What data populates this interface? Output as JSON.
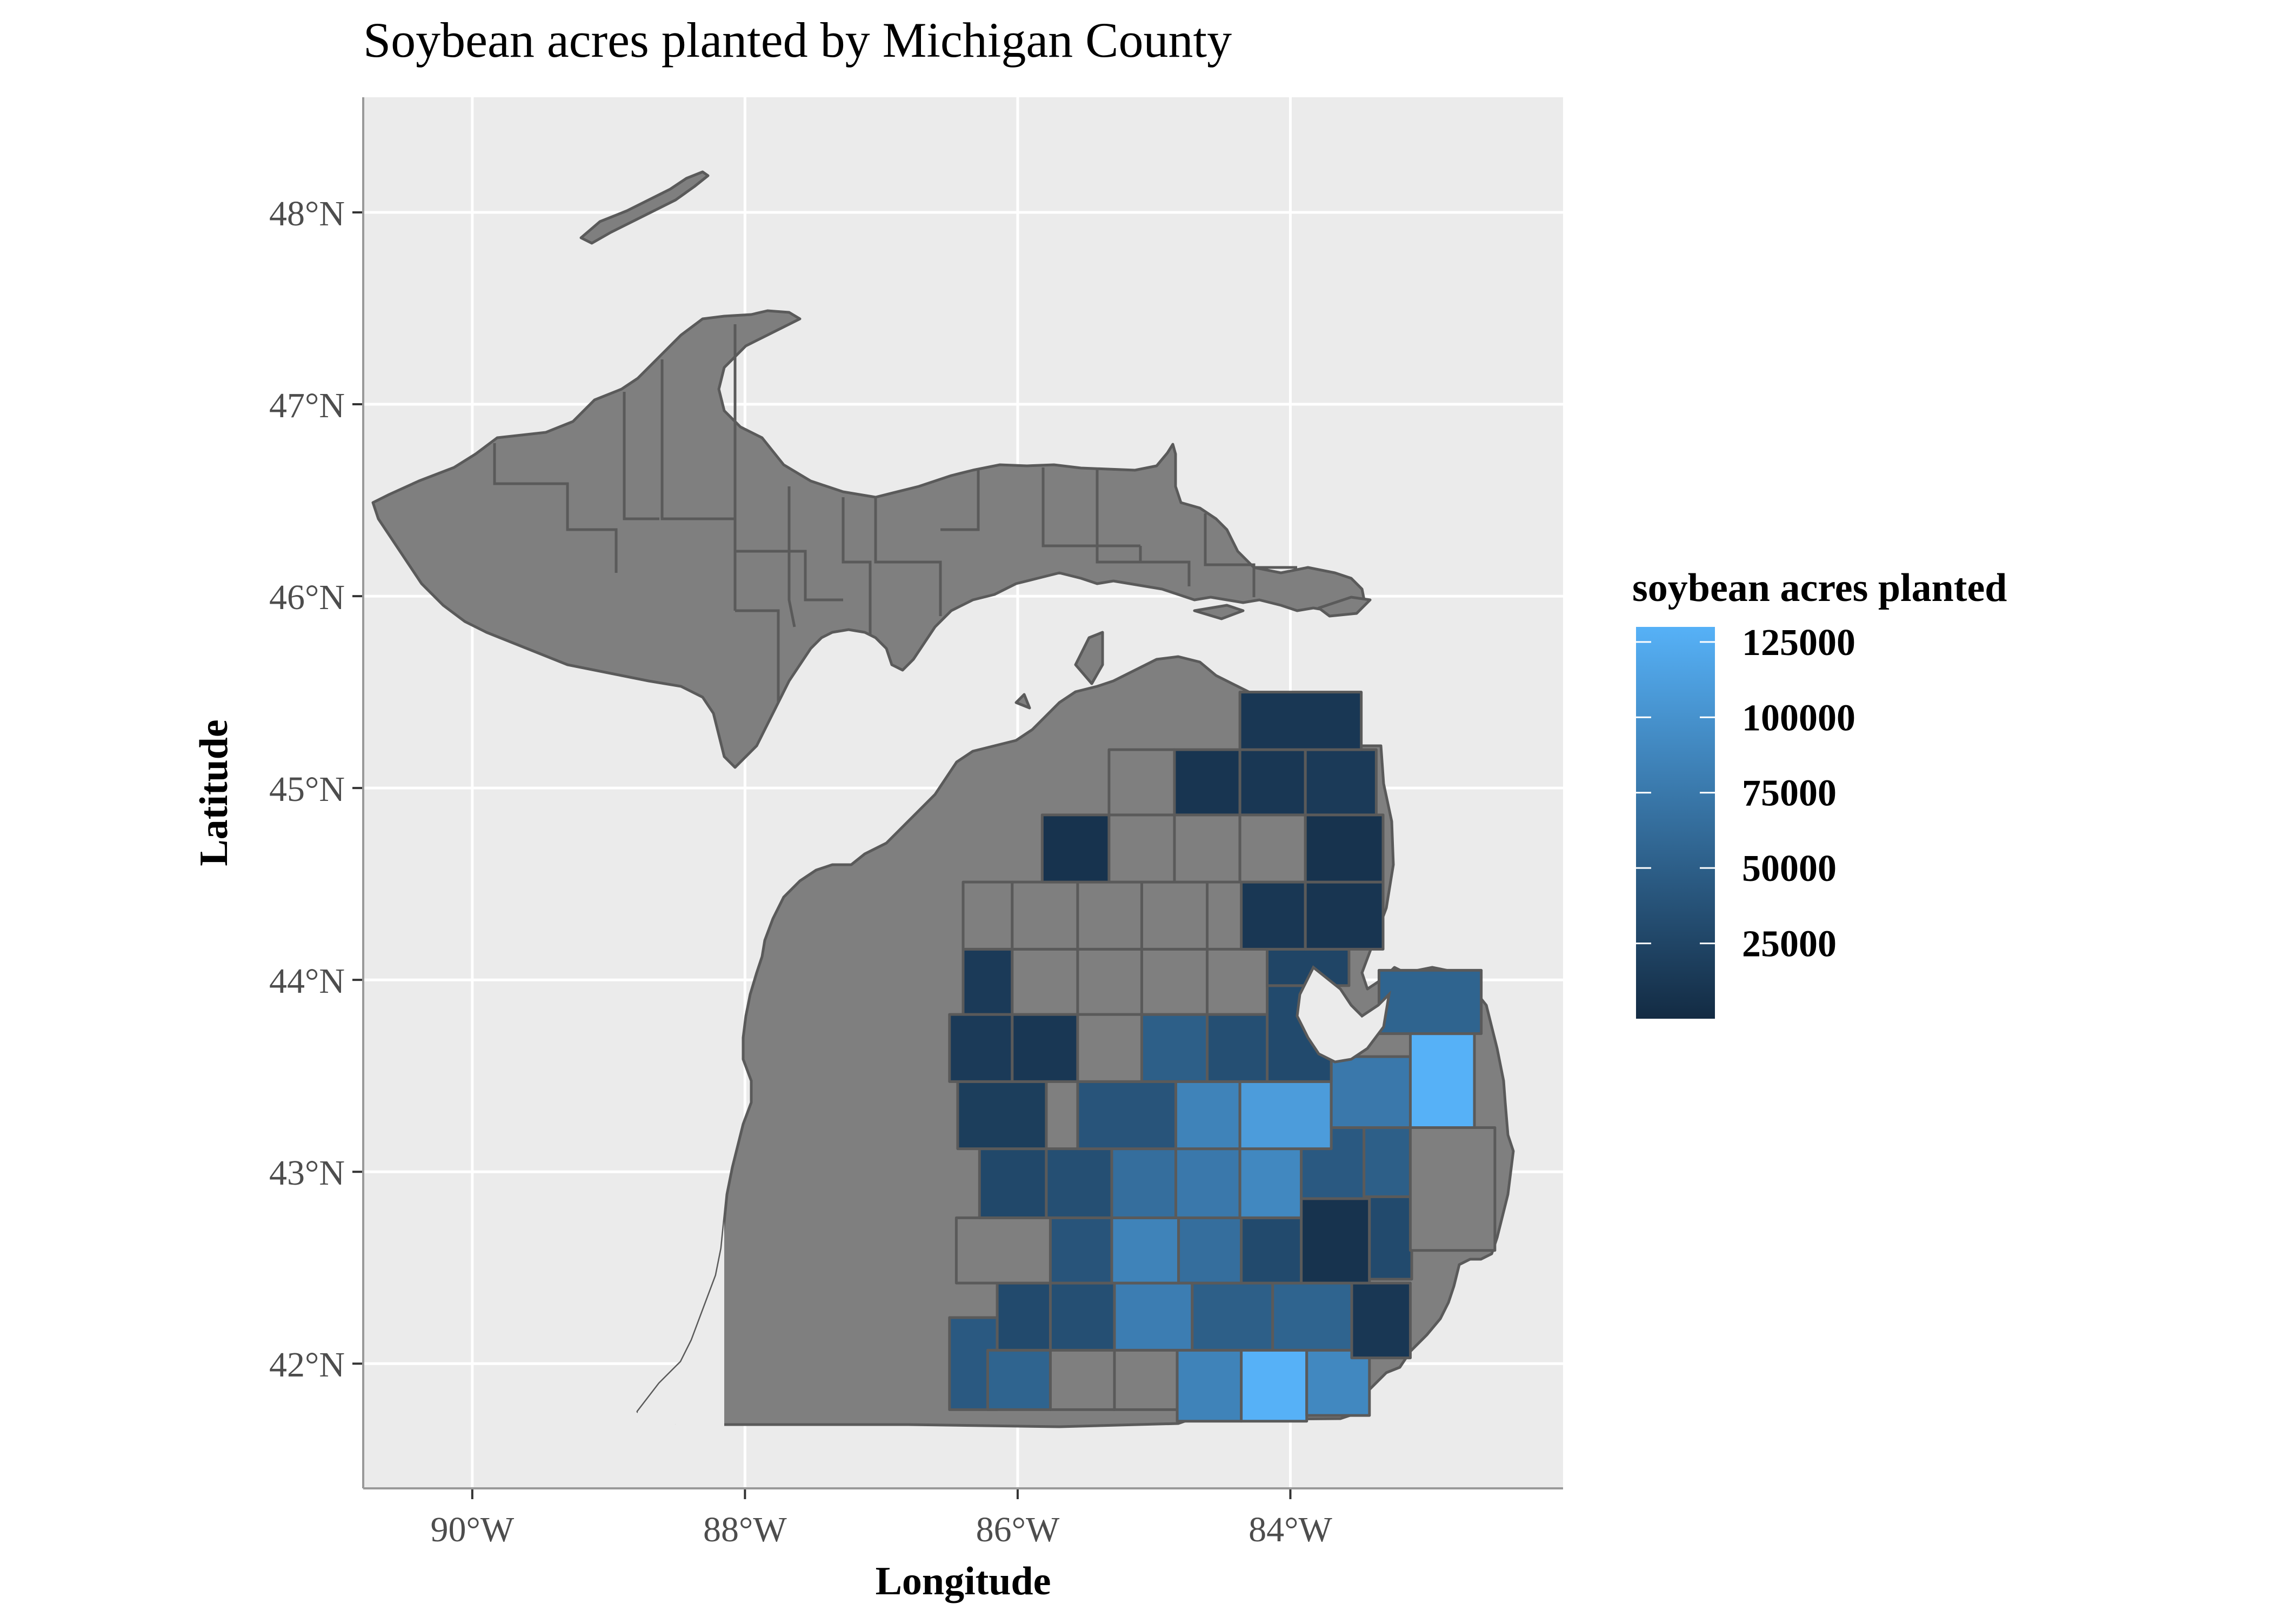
{
  "title": "Soybean acres planted by Michigan County",
  "x_axis": {
    "label": "Longitude",
    "ticks": [
      {
        "value": -90,
        "label": "90°W"
      },
      {
        "value": -88,
        "label": "88°W"
      },
      {
        "value": -86,
        "label": "86°W"
      },
      {
        "value": -84,
        "label": "84°W"
      }
    ],
    "range": [
      -90.8,
      -82.0
    ]
  },
  "y_axis": {
    "label": "Latitude",
    "ticks": [
      {
        "value": 42,
        "label": "42°N"
      },
      {
        "value": 43,
        "label": "43°N"
      },
      {
        "value": 44,
        "label": "44°N"
      },
      {
        "value": 45,
        "label": "45°N"
      },
      {
        "value": 46,
        "label": "46°N"
      },
      {
        "value": 47,
        "label": "47°N"
      },
      {
        "value": 48,
        "label": "48°N"
      }
    ],
    "range": [
      41.35,
      48.6
    ]
  },
  "legend": {
    "title": "soybean acres planted",
    "placement": "right",
    "min": 0,
    "max": 130000,
    "low_color": "#132B43",
    "high_color": "#56B1F7",
    "na_color": "#7F7F7F",
    "ticks": [
      {
        "value": 125000,
        "label": "125000"
      },
      {
        "value": 100000,
        "label": "100000"
      },
      {
        "value": 75000,
        "label": "75000"
      },
      {
        "value": 50000,
        "label": "50000"
      },
      {
        "value": 25000,
        "label": "25000"
      }
    ]
  },
  "panel": {
    "background": "#EBEBEB",
    "grid_color": "#FFFFFF",
    "grid": true
  },
  "chart_data": {
    "type": "choropleth",
    "counties": [
      {
        "lon": [
          -86.5,
          -86.15
        ],
        "lat": [
          41.76,
          42.24
        ],
        "value": 45000
      },
      {
        "lon": [
          -86.22,
          -85.76
        ],
        "lat": [
          41.76,
          42.07
        ],
        "value": 55000
      },
      {
        "lon": [
          -85.76,
          -85.29
        ],
        "lat": [
          41.76,
          42.07
        ],
        "value": null
      },
      {
        "lon": [
          -85.29,
          -84.83
        ],
        "lat": [
          41.76,
          42.07
        ],
        "value": null
      },
      {
        "lon": [
          -84.83,
          -84.36
        ],
        "lat": [
          41.7,
          42.07
        ],
        "value": 85000
      },
      {
        "lon": [
          -84.36,
          -83.88
        ],
        "lat": [
          41.7,
          42.07
        ],
        "value": 130000
      },
      {
        "lon": [
          -83.88,
          -83.42
        ],
        "lat": [
          41.73,
          42.07
        ],
        "value": 90000
      },
      {
        "lon": [
          -86.15,
          -85.76
        ],
        "lat": [
          42.07,
          42.42
        ],
        "value": 30000
      },
      {
        "lon": [
          -85.76,
          -85.29
        ],
        "lat": [
          42.07,
          42.42
        ],
        "value": 35000
      },
      {
        "lon": [
          -85.29,
          -84.72
        ],
        "lat": [
          42.07,
          42.42
        ],
        "value": 80000
      },
      {
        "lon": [
          -84.72,
          -84.13
        ],
        "lat": [
          42.07,
          42.42
        ],
        "value": 50000
      },
      {
        "lon": [
          -84.13,
          -83.55
        ],
        "lat": [
          42.07,
          42.42
        ],
        "value": 55000
      },
      {
        "lon": [
          -83.55,
          -83.12
        ],
        "lat": [
          42.03,
          42.42
        ],
        "value": 12000
      },
      {
        "lon": [
          -86.45,
          -85.76
        ],
        "lat": [
          42.42,
          42.76
        ],
        "value": null
      },
      {
        "lon": [
          -85.76,
          -85.31
        ],
        "lat": [
          42.42,
          42.76
        ],
        "value": 40000
      },
      {
        "lon": [
          -85.31,
          -84.82
        ],
        "lat": [
          42.42,
          42.76
        ],
        "value": 85000
      },
      {
        "lon": [
          -84.82,
          -84.36
        ],
        "lat": [
          42.42,
          42.76
        ],
        "value": 65000
      },
      {
        "lon": [
          -84.36,
          -83.92
        ],
        "lat": [
          42.42,
          42.76
        ],
        "value": 30000
      },
      {
        "lon": [
          -83.92,
          -83.42
        ],
        "lat": [
          42.42,
          42.86
        ],
        "value": 8000
      },
      {
        "lon": [
          -83.42,
          -83.11
        ],
        "lat": [
          42.44,
          42.87
        ],
        "value": 30000
      },
      {
        "lon": [
          -86.28,
          -85.79
        ],
        "lat": [
          42.76,
          43.12
        ],
        "value": 28000
      },
      {
        "lon": [
          -85.79,
          -85.31
        ],
        "lat": [
          42.76,
          43.12
        ],
        "value": 35000
      },
      {
        "lon": [
          -85.31,
          -84.84
        ],
        "lat": [
          42.76,
          43.12
        ],
        "value": 65000
      },
      {
        "lon": [
          -84.84,
          -84.37
        ],
        "lat": [
          42.76,
          43.12
        ],
        "value": 75000
      },
      {
        "lon": [
          -84.37,
          -83.92
        ],
        "lat": [
          42.76,
          43.12
        ],
        "value": 90000
      },
      {
        "lon": [
          -83.92,
          -83.46
        ],
        "lat": [
          42.86,
          43.23
        ],
        "value": 45000
      },
      {
        "lon": [
          -83.46,
          -83.12
        ],
        "lat": [
          42.87,
          43.23
        ],
        "value": 50000
      },
      {
        "lon": [
          -83.12,
          -82.5
        ],
        "lat": [
          42.59,
          43.23
        ],
        "value": null
      },
      {
        "lon": [
          -86.44,
          -85.79
        ],
        "lat": [
          43.12,
          43.47
        ],
        "value": 18000
      },
      {
        "lon": [
          -85.56,
          -84.84
        ],
        "lat": [
          43.12,
          43.47
        ],
        "value": 40000
      },
      {
        "lon": [
          -84.84,
          -84.37
        ],
        "lat": [
          43.12,
          43.47
        ],
        "value": 85000
      },
      {
        "lon": [
          -84.37,
          -83.7
        ],
        "lat": [
          43.12,
          43.47
        ],
        "value": 110000
      },
      {
        "lon": [
          -83.7,
          -83.12
        ],
        "lat": [
          43.23,
          43.6
        ],
        "value": 75000
      },
      {
        "lon": [
          -83.12,
          -82.65
        ],
        "lat": [
          43.23,
          43.72
        ],
        "value": 130000
      },
      {
        "lon": [
          -86.5,
          -86.04
        ],
        "lat": [
          43.47,
          43.82
        ],
        "value": 15000
      },
      {
        "lon": [
          -86.04,
          -85.56
        ],
        "lat": [
          43.47,
          43.82
        ],
        "value": 12000
      },
      {
        "lon": [
          -85.56,
          -85.09
        ],
        "lat": [
          43.47,
          43.82
        ],
        "value": null
      },
      {
        "lon": [
          -85.09,
          -84.61
        ],
        "lat": [
          43.47,
          43.82
        ],
        "value": 50000
      },
      {
        "lon": [
          -84.61,
          -84.17
        ],
        "lat": [
          43.47,
          43.82
        ],
        "value": 35000
      },
      {
        "lon": [
          -84.17,
          -83.7
        ],
        "lat": [
          43.47,
          43.97
        ],
        "value": 30000
      },
      {
        "lon": [
          -83.35,
          -82.6
        ],
        "lat": [
          43.72,
          44.05
        ],
        "value": 55000
      },
      {
        "lon": [
          -86.4,
          -86.04
        ],
        "lat": [
          43.82,
          44.16
        ],
        "value": 15000
      },
      {
        "lon": [
          -86.04,
          -85.56
        ],
        "lat": [
          43.82,
          44.16
        ],
        "value": null
      },
      {
        "lon": [
          -85.56,
          -85.09
        ],
        "lat": [
          43.82,
          44.16
        ],
        "value": null
      },
      {
        "lon": [
          -85.09,
          -84.61
        ],
        "lat": [
          43.82,
          44.16
        ],
        "value": null
      },
      {
        "lon": [
          -84.61,
          -84.17
        ],
        "lat": [
          43.82,
          44.16
        ],
        "value": null
      },
      {
        "lon": [
          -84.17,
          -83.57
        ],
        "lat": [
          43.97,
          44.16
        ],
        "value": 25000
      },
      {
        "lon": [
          -86.4,
          -86.04
        ],
        "lat": [
          44.16,
          44.51
        ],
        "value": null
      },
      {
        "lon": [
          -86.04,
          -85.56
        ],
        "lat": [
          44.16,
          44.51
        ],
        "value": null
      },
      {
        "lon": [
          -85.56,
          -85.09
        ],
        "lat": [
          44.16,
          44.51
        ],
        "value": null
      },
      {
        "lon": [
          -85.09,
          -84.61
        ],
        "lat": [
          44.16,
          44.51
        ],
        "value": null
      },
      {
        "lon": [
          -84.36,
          -83.89
        ],
        "lat": [
          44.16,
          44.51
        ],
        "value": 12000
      },
      {
        "lon": [
          -83.89,
          -83.32
        ],
        "lat": [
          44.16,
          44.51
        ],
        "value": 10000
      },
      {
        "lon": [
          -85.82,
          -85.33
        ],
        "lat": [
          44.51,
          44.86
        ],
        "value": 8000
      },
      {
        "lon": [
          -85.33,
          -84.85
        ],
        "lat": [
          44.51,
          44.86
        ],
        "value": null
      },
      {
        "lon": [
          -84.85,
          -84.37
        ],
        "lat": [
          44.51,
          44.86
        ],
        "value": null
      },
      {
        "lon": [
          -84.37,
          -83.89
        ],
        "lat": [
          44.51,
          44.86
        ],
        "value": null
      },
      {
        "lon": [
          -83.89,
          -83.32
        ],
        "lat": [
          44.51,
          44.86
        ],
        "value": 8000
      },
      {
        "lon": [
          -85.33,
          -84.85
        ],
        "lat": [
          44.86,
          45.2
        ],
        "value": null
      },
      {
        "lon": [
          -84.85,
          -84.37
        ],
        "lat": [
          44.86,
          45.2
        ],
        "value": 10000
      },
      {
        "lon": [
          -84.37,
          -83.89
        ],
        "lat": [
          44.86,
          45.2
        ],
        "value": 12000
      },
      {
        "lon": [
          -83.89,
          -83.37
        ],
        "lat": [
          44.86,
          45.2
        ],
        "value": 15000
      },
      {
        "lon": [
          -84.37,
          -83.48
        ],
        "lat": [
          45.2,
          45.5
        ],
        "value": 12000
      }
    ]
  }
}
